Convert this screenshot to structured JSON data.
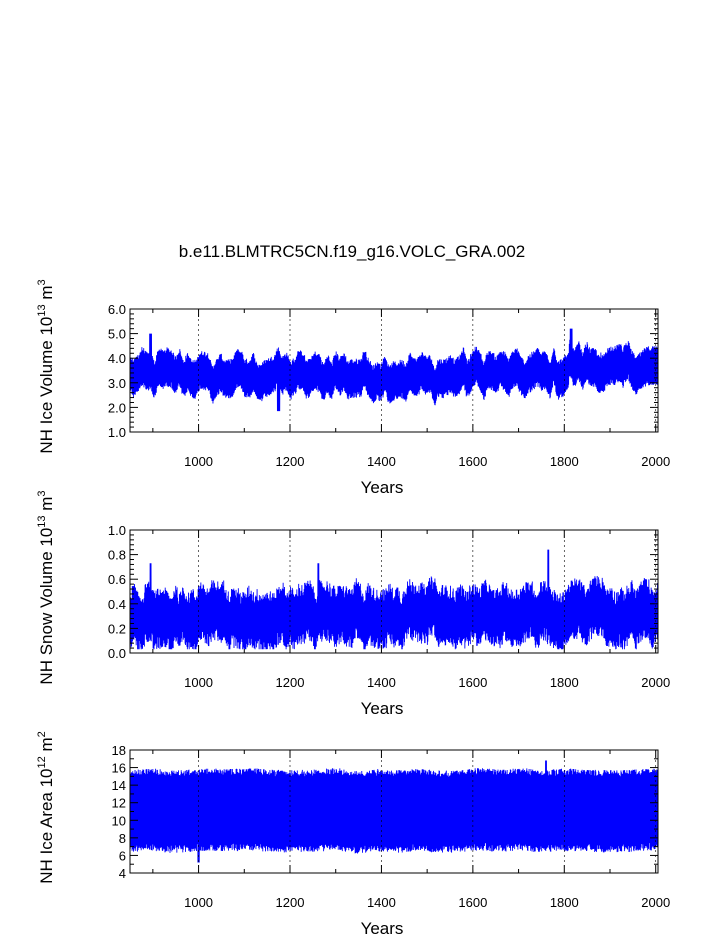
{
  "title": "b.e11.BLMTRC5CN.f19_g16.VOLC_GRA.002",
  "colors": {
    "series": "#0000ff",
    "axis": "#000000"
  },
  "chart_data": [
    {
      "type": "line",
      "title": "b.e11.BLMTRC5CN.f19_g16.VOLC_GRA.002",
      "xlabel": "Years",
      "ylabel_main": "NH Ice Volume 10",
      "ylabel_exp": "13",
      "ylabel_unit": " m",
      "ylabel_unit_exp": "3",
      "xlim": [
        850,
        2005
      ],
      "ylim": [
        1.0,
        6.0
      ],
      "x_ticks": [
        1000,
        1200,
        1400,
        1600,
        1800,
        2000
      ],
      "y_ticks": [
        "1.0",
        "2.0",
        "3.0",
        "4.0",
        "5.0",
        "6.0"
      ],
      "grid": "vertical dashed at x ticks",
      "series": [
        {
          "values_summary": "monthly values oscillating ~2.5-4.3, min ~1.8 near 1175, max ~5.2 near 1815"
        }
      ]
    },
    {
      "type": "line",
      "xlabel": "Years",
      "ylabel_main": "NH Snow Volume 10",
      "ylabel_exp": "13",
      "ylabel_unit": " m",
      "ylabel_unit_exp": "3",
      "xlim": [
        850,
        2005
      ],
      "ylim": [
        0.0,
        1.0
      ],
      "x_ticks": [
        1000,
        1200,
        1400,
        1600,
        1800,
        2000
      ],
      "y_ticks": [
        "0.0",
        "0.2",
        "0.4",
        "0.6",
        "0.8",
        "1.0"
      ],
      "grid": "vertical dashed at x ticks",
      "series": [
        {
          "values_summary": "monthly values oscillating ~0.1-0.55, peak ~0.84 near 1765"
        }
      ]
    },
    {
      "type": "line",
      "xlabel": "Years",
      "ylabel_main": "NH Ice Area 10",
      "ylabel_exp": "12",
      "ylabel_unit": " m",
      "ylabel_unit_exp": "2",
      "xlim": [
        850,
        2005
      ],
      "ylim": [
        4,
        18
      ],
      "x_ticks": [
        1000,
        1200,
        1400,
        1600,
        1800,
        2000
      ],
      "y_ticks": [
        "4",
        "6",
        "8",
        "10",
        "12",
        "14",
        "16",
        "18"
      ],
      "grid": "vertical dashed at x ticks",
      "series": [
        {
          "values_summary": "seasonal cycle between ~7 and ~15.5, extremes ~5.2 and ~16.8"
        }
      ]
    }
  ]
}
